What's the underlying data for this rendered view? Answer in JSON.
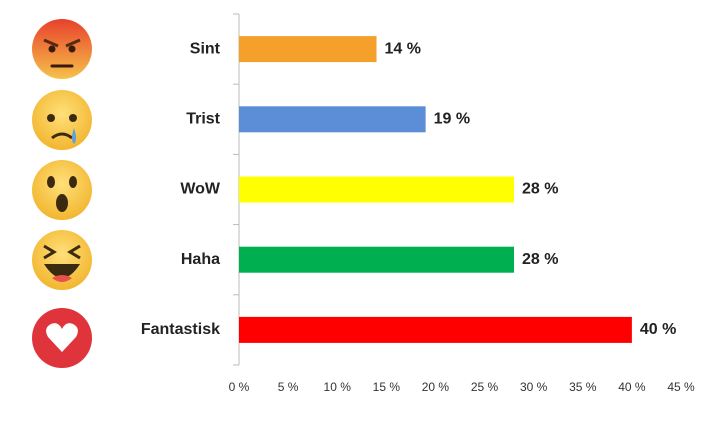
{
  "chart_data": {
    "type": "bar",
    "orientation": "horizontal",
    "categories": [
      "Sint",
      "Trist",
      "WoW",
      "Haha",
      "Fantastisk"
    ],
    "values": [
      14,
      19,
      28,
      28,
      40
    ],
    "value_labels": [
      "14 %",
      "19 %",
      "28 %",
      "28 %",
      "40 %"
    ],
    "colors": [
      "#f5a02a",
      "#5b8ed6",
      "#ffff00",
      "#00b050",
      "#ff0000"
    ],
    "xlim": [
      0,
      45
    ],
    "xticks": [
      {
        "value": 0,
        "label": "0 %"
      },
      {
        "value": 5,
        "label": "5 %"
      },
      {
        "value": 10,
        "label": "10 %"
      },
      {
        "value": 15,
        "label": "15 %"
      },
      {
        "value": 20,
        "label": "20 %"
      },
      {
        "value": 25,
        "label": "25 %"
      },
      {
        "value": 30,
        "label": "30 %"
      },
      {
        "value": 35,
        "label": "35 %"
      },
      {
        "value": 40,
        "label": "40 %"
      },
      {
        "value": 45,
        "label": "45 %"
      }
    ]
  }
}
